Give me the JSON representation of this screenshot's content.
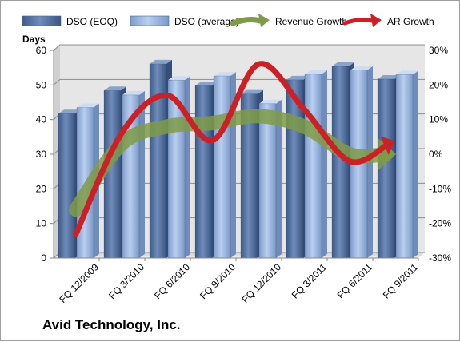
{
  "company_name": "Avid Technology, Inc.",
  "colors": {
    "dso_eoq": "#5a77a4",
    "dso_avg": "#97b3d8",
    "revenue_growth": "#7f9b48",
    "ar_growth": "#cc2027",
    "plot_background": "#e6e6e6"
  },
  "chart_data": {
    "type": "bar",
    "categories": [
      "FQ 12/2009",
      "FQ 3/2010",
      "FQ 6/2010",
      "FQ 9/2010",
      "FQ 12/2010",
      "FQ 3/2011",
      "FQ 6/2011",
      "FQ 9/2011"
    ],
    "ylabel": "Days",
    "ylim": [
      0,
      60
    ],
    "yticks": [
      "0",
      "10",
      "20",
      "30",
      "40",
      "50",
      "60"
    ],
    "y2lim": [
      -30,
      30
    ],
    "y2ticks": [
      "-30%",
      "-20%",
      "-10%",
      "0%",
      "10%",
      "20%",
      "30%"
    ],
    "grid": true,
    "legend_position": "top",
    "series": [
      {
        "name": "DSO (EOQ)",
        "type": "bar",
        "axis": "left",
        "values": [
          41.7,
          48.4,
          56.1,
          49.8,
          47.4,
          51.5,
          55.4,
          51.7
        ]
      },
      {
        "name": "DSO (average)",
        "type": "bar",
        "axis": "left",
        "values": [
          43.5,
          47.1,
          51.4,
          52.6,
          44.6,
          53.1,
          54.3,
          53.0
        ]
      },
      {
        "name": "Revenue Growth",
        "type": "line",
        "axis": "right",
        "values": [
          -16,
          3,
          8,
          9,
          11,
          8,
          0,
          0
        ]
      },
      {
        "name": "AR Growth",
        "type": "line",
        "axis": "right",
        "values": [
          -23,
          6,
          17,
          4,
          26,
          13,
          -2,
          3
        ]
      }
    ]
  }
}
